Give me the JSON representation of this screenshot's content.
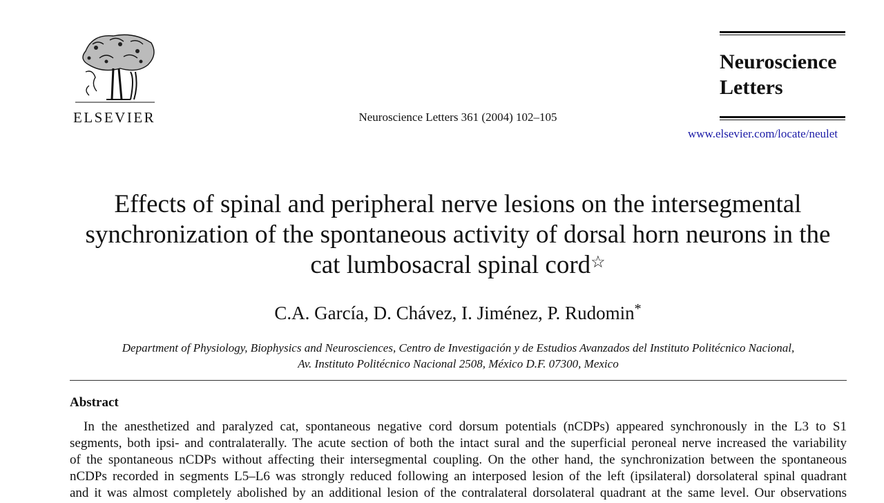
{
  "header": {
    "publisher": "ELSEVIER",
    "citation": "Neuroscience Letters 361 (2004) 102–105",
    "journal_name_line1": "Neuroscience",
    "journal_name_line2": "Letters",
    "url": "www.elsevier.com/locate/neulet"
  },
  "article": {
    "title_lines": [
      "Effects of spinal and peripheral nerve lesions on the intersegmental",
      "synchronization of the spontaneous activity of dorsal horn neurons in the",
      "cat lumbosacral spinal cord"
    ],
    "title_mark": "☆",
    "authors": "C.A. García, D. Chávez, I. Jiménez, P. Rudomin",
    "author_mark": "*",
    "affiliation_lines": [
      "Department of Physiology, Biophysics and Neurosciences, Centro de Investigación y de Estudios Avanzados del Instituto Politécnico Nacional,",
      "Av. Instituto Politécnico Nacional 2508, México D.F. 07300, Mexico"
    ],
    "abstract_heading": "Abstract",
    "abstract_lines": [
      "In the anesthetized and paralyzed cat, spontaneous negative cord dorsum potentials (nCDPs) appeared synchronously in the L3 to S1",
      "segments, both ipsi- and contralaterally. The acute section of both the intact sural and the superficial peroneal nerve increased the variability",
      "of the spontaneous nCDPs without affecting their intersegmental coupling. On the other hand, the synchronization between the spontaneous",
      "nCDPs recorded in segments L5–L6 was strongly reduced following an interposed lesion of the left (ipsilateral) dorsolateral spinal quadrant",
      "and it was almost completely abolished by an additional lesion of the contralateral dorsolateral quadrant at the same level. Our observations"
    ]
  },
  "colors": {
    "link": "#1a1aa6",
    "text": "#111111"
  }
}
